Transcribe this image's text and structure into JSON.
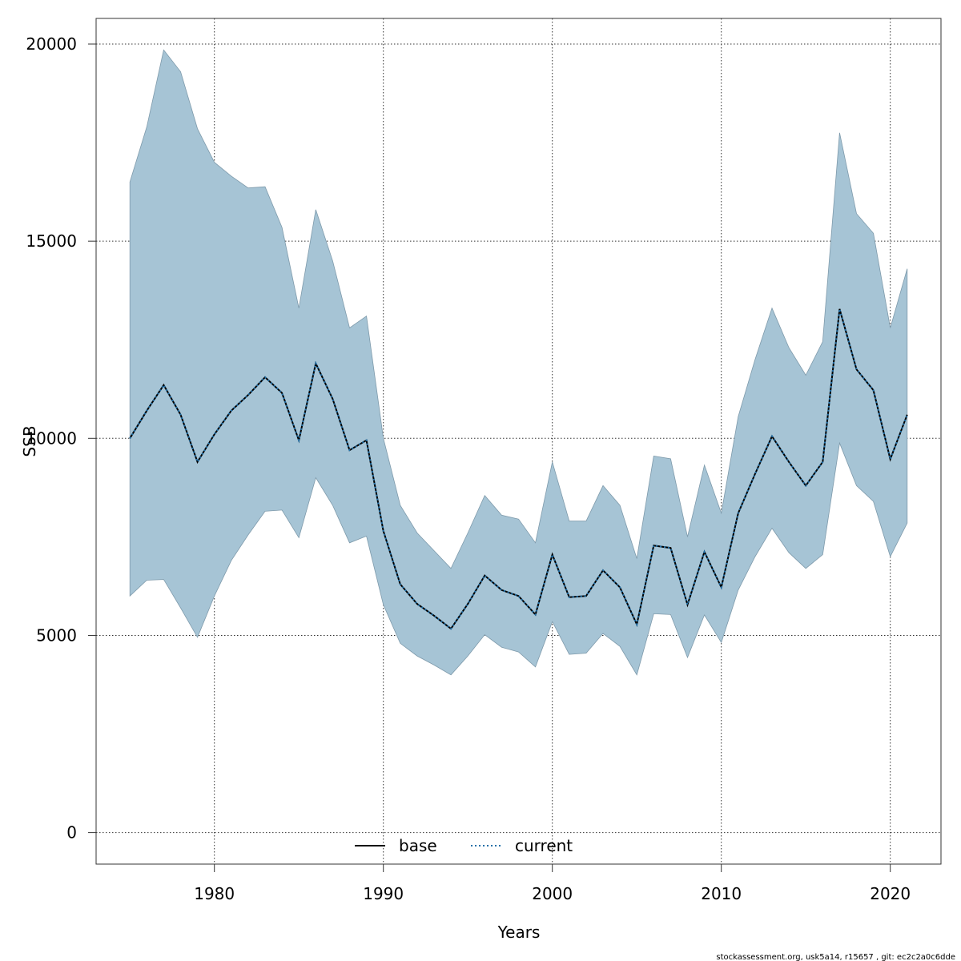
{
  "chart_data": {
    "type": "area",
    "xlabel": "Years",
    "ylabel": "SSB",
    "xlim": [
      1973,
      2023
    ],
    "ylim": [
      -800,
      20650
    ],
    "x_ticks": [
      1980,
      1990,
      2000,
      2010,
      2020
    ],
    "y_ticks": [
      0,
      5000,
      10000,
      15000,
      20000
    ],
    "x_tick_labels": [
      "1980",
      "1990",
      "2000",
      "2010",
      "2020"
    ],
    "y_tick_labels": [
      "0",
      "5000",
      "10000",
      "15000",
      "20000"
    ],
    "grid": true,
    "legend_position": "bottom-center",
    "band_color": "#a6c4d5",
    "years": [
      1975,
      1976,
      1977,
      1978,
      1979,
      1980,
      1981,
      1982,
      1983,
      1984,
      1985,
      1986,
      1987,
      1988,
      1989,
      1990,
      1991,
      1992,
      1993,
      1994,
      1995,
      1996,
      1997,
      1998,
      1999,
      2000,
      2001,
      2002,
      2003,
      2004,
      2005,
      2006,
      2007,
      2008,
      2009,
      2010,
      2011,
      2012,
      2013,
      2014,
      2015,
      2016,
      2017,
      2018,
      2019,
      2020,
      2021
    ],
    "upper": [
      16500,
      17900,
      19850,
      19300,
      17850,
      17000,
      16650,
      16350,
      16380,
      15350,
      13300,
      15800,
      14500,
      12800,
      13100,
      10000,
      8300,
      7600,
      7150,
      6700,
      7600,
      8550,
      8050,
      7950,
      7350,
      9400,
      7900,
      7900,
      8800,
      8300,
      6950,
      9550,
      9480,
      7500,
      9320,
      8100,
      10550,
      12000,
      13300,
      12300,
      11600,
      12450,
      17750,
      15700,
      15200,
      12800,
      14300
    ],
    "lower": [
      6000,
      6400,
      6420,
      5700,
      4950,
      6000,
      6900,
      7550,
      8150,
      8180,
      7480,
      9000,
      8300,
      7350,
      7520,
      5780,
      4800,
      4480,
      4250,
      4000,
      4480,
      5020,
      4700,
      4580,
      4200,
      5350,
      4520,
      4550,
      5050,
      4720,
      4000,
      5550,
      5530,
      4440,
      5520,
      4820,
      6150,
      7000,
      7720,
      7100,
      6700,
      7050,
      9880,
      8800,
      8400,
      7000,
      7850
    ],
    "series": [
      {
        "name": "base",
        "style": "solid",
        "color": "#000000",
        "values": [
          10000,
          10700,
          11350,
          10600,
          9400,
          10100,
          10700,
          11100,
          11550,
          11150,
          9950,
          11900,
          11000,
          9700,
          9950,
          7650,
          6300,
          5800,
          5500,
          5170,
          5800,
          6520,
          6150,
          6000,
          5530,
          7050,
          5970,
          6000,
          6650,
          6220,
          5280,
          7280,
          7220,
          5780,
          7120,
          6220,
          8100,
          9100,
          10050,
          9400,
          8800,
          9400,
          13280,
          11750,
          11220,
          9470,
          10600
        ]
      },
      {
        "name": "current",
        "style": "dotted",
        "color": "#1f6fa8",
        "values": [
          10000,
          10700,
          11350,
          10600,
          9400,
          10100,
          10700,
          11100,
          11550,
          11150,
          9950,
          11900,
          11000,
          9700,
          9950,
          7650,
          6300,
          5800,
          5500,
          5170,
          5800,
          6520,
          6150,
          6000,
          5530,
          7050,
          5970,
          6000,
          6650,
          6220,
          5280,
          7280,
          7220,
          5780,
          7120,
          6220,
          8100,
          9100,
          10050,
          9400,
          8800,
          9400,
          13280,
          11750,
          11220,
          9470,
          10600
        ]
      }
    ]
  },
  "legend": {
    "base_label": "base",
    "current_label": "current"
  },
  "footer": {
    "text": "stockassessment.org, usk5a14, r15657 , git: ec2c2a0c6dde"
  }
}
